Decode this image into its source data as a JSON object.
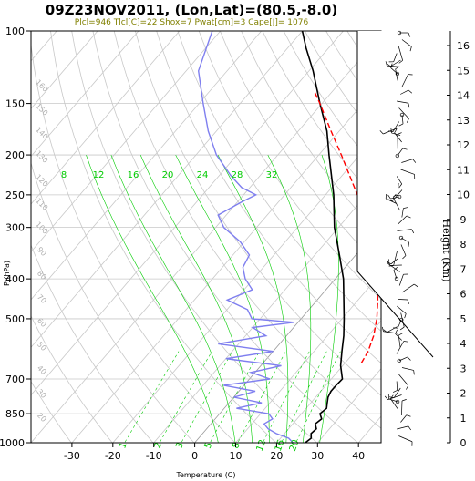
{
  "chart_data": {
    "type": "line",
    "title": "09Z23NOV2011, (Lon,Lat)=(80.5,-8.0)",
    "subtitle": "Plcl=946 Tlcl[C]=22 Shox=7 Pwat[cm]=3 Cape[J]= 1076",
    "xlabel": "Temperature (C)",
    "ylabel": "P (hPa)",
    "y2label": "Height (Km)",
    "x_ticks": [
      -30,
      -20,
      -10,
      0,
      10,
      20,
      30,
      40
    ],
    "y_ticks": [
      100,
      150,
      200,
      250,
      300,
      400,
      500,
      700,
      850,
      1000
    ],
    "y2_ticks": [
      0,
      1,
      2,
      3,
      4,
      5,
      6,
      7,
      8,
      9,
      10,
      11,
      12,
      13,
      14,
      15,
      16
    ],
    "mixing_ratio_labels_top": [
      "8",
      "12",
      "16",
      "20",
      "24",
      "28",
      "32"
    ],
    "mixing_ratio_labels_bottom": [
      "1",
      "2",
      "3",
      "5",
      "8",
      "12",
      "16",
      "20"
    ],
    "dry_adiabat_labels": [
      "20",
      "30",
      "40",
      "50",
      "60",
      "70",
      "80",
      "90",
      "100",
      "110",
      "120",
      "130",
      "140",
      "150",
      "160"
    ],
    "series": [
      {
        "name": "Temperature",
        "color": "#000000",
        "points": [
          [
            1000,
            27
          ],
          [
            975,
            27.5
          ],
          [
            950,
            26.5
          ],
          [
            925,
            26.8
          ],
          [
            900,
            25.5
          ],
          [
            875,
            26
          ],
          [
            850,
            24.5
          ],
          [
            825,
            25
          ],
          [
            800,
            24
          ],
          [
            775,
            23
          ],
          [
            750,
            22.5
          ],
          [
            725,
            22.5
          ],
          [
            700,
            22.7
          ],
          [
            650,
            19.5
          ],
          [
            600,
            16.8
          ],
          [
            550,
            14
          ],
          [
            500,
            10.5
          ],
          [
            450,
            6.5
          ],
          [
            400,
            2
          ],
          [
            350,
            -4
          ],
          [
            300,
            -11
          ],
          [
            250,
            -18
          ],
          [
            200,
            -27.5
          ],
          [
            175,
            -33
          ],
          [
            150,
            -40.5
          ],
          [
            125,
            -49
          ],
          [
            110,
            -55.5
          ],
          [
            100,
            -60
          ]
        ]
      },
      {
        "name": "Dew point",
        "color": "#7f7fef",
        "points": [
          [
            1000,
            24
          ],
          [
            975,
            22
          ],
          [
            950,
            18
          ],
          [
            925,
            15
          ],
          [
            900,
            13
          ],
          [
            875,
            14
          ],
          [
            850,
            12
          ],
          [
            825,
            3
          ],
          [
            800,
            8
          ],
          [
            775,
            0
          ],
          [
            750,
            4
          ],
          [
            725,
            -5
          ],
          [
            700,
            5
          ],
          [
            675,
            -1
          ],
          [
            650,
            5
          ],
          [
            625,
            -10
          ],
          [
            600,
            0
          ],
          [
            575,
            -15
          ],
          [
            550,
            -5
          ],
          [
            525,
            -10
          ],
          [
            510,
            -1
          ],
          [
            500,
            -12
          ],
          [
            475,
            -15
          ],
          [
            450,
            -22
          ],
          [
            425,
            -18
          ],
          [
            400,
            -22
          ],
          [
            375,
            -25
          ],
          [
            350,
            -26
          ],
          [
            325,
            -31
          ],
          [
            300,
            -38
          ],
          [
            280,
            -42
          ],
          [
            260,
            -39
          ],
          [
            250,
            -37
          ],
          [
            240,
            -42
          ],
          [
            225,
            -47
          ],
          [
            200,
            -55
          ],
          [
            175,
            -62
          ],
          [
            150,
            -69
          ],
          [
            125,
            -77
          ],
          [
            100,
            -82
          ]
        ]
      },
      {
        "name": "Parcel",
        "color": "#ff0000",
        "points": [
          [
            640,
            24
          ],
          [
            600,
            23.2
          ],
          [
            550,
            21.3
          ],
          [
            500,
            18.5
          ],
          [
            450,
            14.8
          ],
          [
            400,
            10.2
          ],
          [
            350,
            4.5
          ],
          [
            300,
            -2.8
          ],
          [
            250,
            -12.2
          ],
          [
            200,
            -24.5
          ],
          [
            175,
            -32
          ],
          [
            150,
            -40.5
          ],
          [
            140,
            -44.5
          ]
        ]
      }
    ],
    "wind_barbs": {
      "color": "#000000",
      "note": "wind barbs along right panel at each height level"
    },
    "colors": {
      "isotherm": "#c8c8c8",
      "dry_adiabat": "#c8c8c8",
      "mixing_ratio": "#00cc00",
      "moist_adiabat": "#00cc00"
    }
  }
}
